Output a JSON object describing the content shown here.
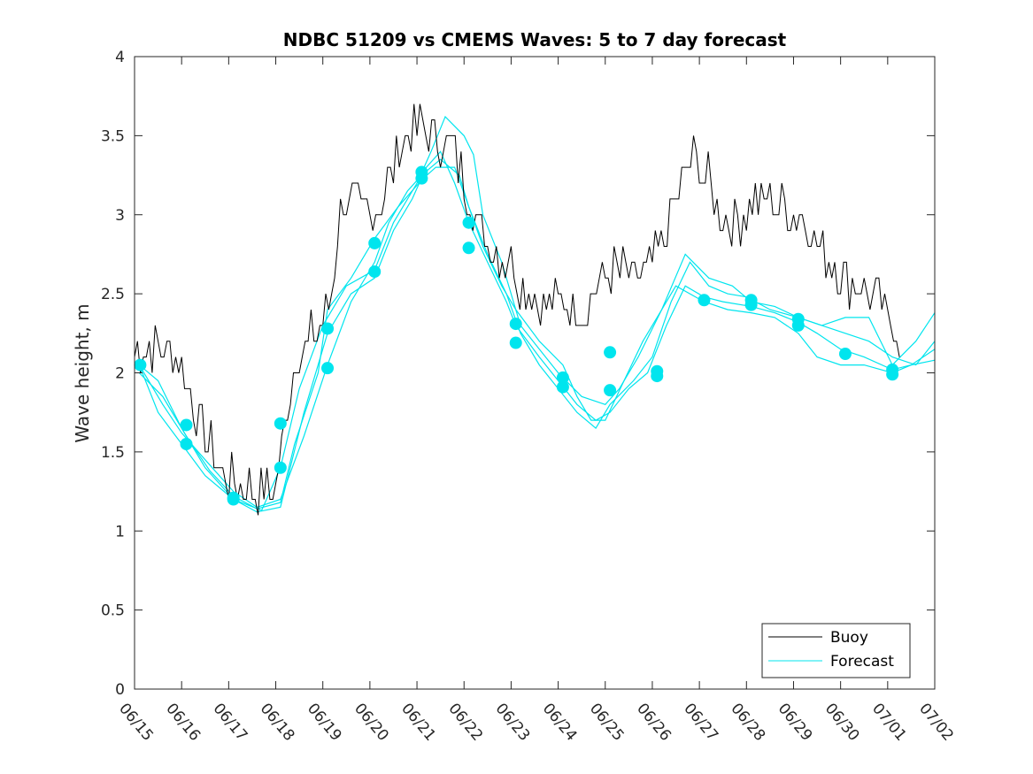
{
  "chart_data": {
    "type": "line",
    "title": "NDBC 51209 vs CMEMS Waves: 5 to 7 day forecast",
    "xlabel": "",
    "ylabel": "Wave height, m",
    "xlim": [
      0,
      17
    ],
    "ylim": [
      0,
      4
    ],
    "x_unit": "days since 06/15",
    "x_tick_labels": [
      "06/15",
      "06/16",
      "06/17",
      "06/18",
      "06/19",
      "06/20",
      "06/21",
      "06/22",
      "06/23",
      "06/24",
      "06/25",
      "06/26",
      "06/27",
      "06/28",
      "06/29",
      "06/30",
      "07/01",
      "07/02"
    ],
    "y_ticks": [
      0,
      0.5,
      1,
      1.5,
      2,
      2.5,
      3,
      3.5,
      4
    ],
    "y_tick_labels": [
      "0",
      "0.5",
      "1",
      "1.5",
      "2",
      "2.5",
      "3",
      "3.5",
      "4"
    ],
    "grid": false,
    "legend": {
      "position": "bottom-right",
      "entries": [
        "Buoy",
        "Forecast"
      ]
    },
    "colors": {
      "buoy": "#000000",
      "forecast": "#00e5ee"
    },
    "buoy_anchors": [
      [
        0.0,
        2.15
      ],
      [
        0.5,
        2.15
      ],
      [
        0.8,
        2.15
      ],
      [
        1.0,
        2.05
      ],
      [
        1.2,
        1.85
      ],
      [
        1.5,
        1.6
      ],
      [
        1.7,
        1.45
      ],
      [
        2.0,
        1.35
      ],
      [
        2.3,
        1.28
      ],
      [
        2.6,
        1.25
      ],
      [
        2.9,
        1.25
      ],
      [
        3.0,
        1.3
      ],
      [
        3.2,
        1.7
      ],
      [
        3.4,
        2.1
      ],
      [
        3.7,
        2.2
      ],
      [
        4.0,
        2.3
      ],
      [
        4.2,
        2.5
      ],
      [
        4.4,
        3.1
      ],
      [
        4.6,
        3.05
      ],
      [
        5.0,
        3.0
      ],
      [
        5.3,
        3.15
      ],
      [
        5.6,
        3.4
      ],
      [
        5.9,
        3.55
      ],
      [
        6.2,
        3.55
      ],
      [
        6.5,
        3.5
      ],
      [
        6.8,
        3.4
      ],
      [
        7.0,
        3.2
      ],
      [
        7.3,
        2.95
      ],
      [
        7.6,
        2.8
      ],
      [
        8.0,
        2.7
      ],
      [
        8.3,
        2.55
      ],
      [
        8.6,
        2.45
      ],
      [
        9.0,
        2.45
      ],
      [
        9.3,
        2.4
      ],
      [
        9.6,
        2.4
      ],
      [
        9.9,
        2.55
      ],
      [
        10.2,
        2.65
      ],
      [
        10.5,
        2.6
      ],
      [
        10.8,
        2.6
      ],
      [
        11.0,
        2.7
      ],
      [
        11.3,
        2.9
      ],
      [
        11.6,
        3.2
      ],
      [
        11.9,
        3.35
      ],
      [
        12.2,
        3.2
      ],
      [
        12.5,
        3.0
      ],
      [
        12.8,
        2.95
      ],
      [
        13.1,
        3.1
      ],
      [
        13.4,
        3.1
      ],
      [
        13.7,
        3.05
      ],
      [
        14.0,
        3.05
      ],
      [
        14.3,
        2.95
      ],
      [
        14.6,
        2.75
      ],
      [
        14.9,
        2.7
      ],
      [
        15.2,
        2.55
      ],
      [
        15.5,
        2.55
      ],
      [
        15.8,
        2.45
      ],
      [
        16.0,
        2.35
      ],
      [
        16.2,
        2.3
      ],
      [
        16.3,
        2.2
      ]
    ],
    "forecast_lines": [
      [
        [
          0.1,
          2.05
        ],
        [
          0.6,
          1.8
        ],
        [
          1.0,
          1.62
        ],
        [
          1.5,
          1.45
        ],
        [
          2.1,
          1.25
        ],
        [
          2.6,
          1.15
        ],
        [
          3.1,
          1.2
        ],
        [
          3.6,
          1.6
        ],
        [
          4.1,
          2.05
        ],
        [
          4.6,
          2.45
        ],
        [
          5.1,
          2.7
        ],
        [
          5.4,
          2.95
        ],
        [
          5.8,
          3.15
        ],
        [
          6.1,
          3.25
        ],
        [
          6.5,
          3.35
        ],
        [
          6.9,
          3.25
        ],
        [
          7.1,
          3.05
        ],
        [
          7.4,
          2.8
        ],
        [
          7.8,
          2.55
        ],
        [
          8.1,
          2.4
        ],
        [
          8.6,
          2.2
        ],
        [
          9.1,
          2.05
        ],
        [
          9.4,
          1.85
        ],
        [
          9.7,
          1.7
        ],
        [
          10.0,
          1.7
        ],
        [
          10.4,
          1.95
        ],
        [
          10.8,
          2.2
        ],
        [
          11.1,
          2.35
        ],
        [
          11.5,
          2.55
        ],
        [
          12.1,
          2.45
        ],
        [
          12.6,
          2.4
        ],
        [
          13.1,
          2.38
        ],
        [
          13.6,
          2.35
        ],
        [
          14.1,
          2.25
        ],
        [
          14.5,
          2.1
        ],
        [
          15.0,
          2.05
        ],
        [
          15.5,
          2.05
        ],
        [
          16.1,
          2.0
        ],
        [
          16.5,
          2.05
        ],
        [
          17.0,
          2.15
        ]
      ],
      [
        [
          0.1,
          2.05
        ],
        [
          0.5,
          1.95
        ],
        [
          1.0,
          1.65
        ],
        [
          1.5,
          1.4
        ],
        [
          2.1,
          1.2
        ],
        [
          2.6,
          1.12
        ],
        [
          3.1,
          1.15
        ],
        [
          3.6,
          1.75
        ],
        [
          4.1,
          2.25
        ],
        [
          4.6,
          2.5
        ],
        [
          5.1,
          2.6
        ],
        [
          5.5,
          2.9
        ],
        [
          5.9,
          3.1
        ],
        [
          6.2,
          3.3
        ],
        [
          6.5,
          3.4
        ],
        [
          6.8,
          3.2
        ],
        [
          7.1,
          2.95
        ],
        [
          7.5,
          2.7
        ],
        [
          7.9,
          2.45
        ],
        [
          8.1,
          2.3
        ],
        [
          8.6,
          2.1
        ],
        [
          9.0,
          1.95
        ],
        [
          9.4,
          1.8
        ],
        [
          9.8,
          1.7
        ],
        [
          10.1,
          1.75
        ],
        [
          10.5,
          1.9
        ],
        [
          10.9,
          2.0
        ],
        [
          11.3,
          2.3
        ],
        [
          11.7,
          2.55
        ],
        [
          12.1,
          2.48
        ],
        [
          12.5,
          2.45
        ],
        [
          13.1,
          2.42
        ],
        [
          13.6,
          2.38
        ],
        [
          14.1,
          2.32
        ],
        [
          14.5,
          2.25
        ],
        [
          15.0,
          2.15
        ],
        [
          15.5,
          2.1
        ],
        [
          16.1,
          2.02
        ],
        [
          16.5,
          2.05
        ],
        [
          17.0,
          2.08
        ]
      ],
      [
        [
          0.1,
          2.0
        ],
        [
          0.6,
          1.85
        ],
        [
          1.1,
          1.6
        ],
        [
          1.6,
          1.38
        ],
        [
          2.1,
          1.22
        ],
        [
          2.6,
          1.14
        ],
        [
          3.1,
          1.18
        ],
        [
          3.4,
          1.55
        ],
        [
          3.9,
          2.0
        ],
        [
          4.1,
          2.4
        ],
        [
          4.6,
          2.6
        ],
        [
          5.1,
          2.85
        ],
        [
          5.6,
          3.05
        ],
        [
          6.1,
          3.22
        ],
        [
          6.4,
          3.3
        ],
        [
          6.8,
          3.3
        ],
        [
          7.1,
          3.05
        ],
        [
          7.5,
          2.75
        ],
        [
          7.9,
          2.5
        ],
        [
          8.2,
          2.25
        ],
        [
          8.6,
          2.05
        ],
        [
          9.0,
          1.9
        ],
        [
          9.4,
          1.75
        ],
        [
          9.8,
          1.65
        ],
        [
          10.1,
          1.8
        ],
        [
          10.6,
          1.95
        ],
        [
          11.0,
          2.1
        ],
        [
          11.4,
          2.45
        ],
        [
          11.8,
          2.7
        ],
        [
          12.2,
          2.55
        ],
        [
          12.6,
          2.5
        ],
        [
          13.0,
          2.48
        ],
        [
          13.5,
          2.4
        ],
        [
          14.1,
          2.35
        ],
        [
          14.6,
          2.3
        ],
        [
          15.1,
          2.35
        ],
        [
          15.6,
          2.35
        ],
        [
          16.1,
          2.05
        ],
        [
          16.6,
          2.2
        ],
        [
          17.0,
          2.38
        ]
      ],
      [
        [
          0.1,
          2.05
        ],
        [
          0.5,
          1.75
        ],
        [
          1.0,
          1.55
        ],
        [
          1.5,
          1.35
        ],
        [
          2.1,
          1.2
        ],
        [
          2.7,
          1.13
        ],
        [
          3.1,
          1.4
        ],
        [
          3.5,
          1.9
        ],
        [
          4.0,
          2.3
        ],
        [
          4.5,
          2.55
        ],
        [
          5.1,
          2.65
        ],
        [
          5.5,
          2.95
        ],
        [
          6.0,
          3.2
        ],
        [
          6.3,
          3.4
        ],
        [
          6.6,
          3.62
        ],
        [
          7.0,
          3.5
        ],
        [
          7.2,
          3.38
        ],
        [
          7.4,
          3.0
        ],
        [
          7.8,
          2.7
        ],
        [
          8.2,
          2.3
        ],
        [
          8.6,
          2.15
        ],
        [
          9.0,
          2.0
        ],
        [
          9.5,
          1.85
        ],
        [
          10.0,
          1.8
        ],
        [
          10.3,
          1.9
        ],
        [
          10.7,
          2.1
        ],
        [
          11.2,
          2.4
        ],
        [
          11.7,
          2.75
        ],
        [
          12.2,
          2.6
        ],
        [
          12.7,
          2.55
        ],
        [
          13.1,
          2.45
        ],
        [
          13.6,
          2.42
        ],
        [
          14.1,
          2.35
        ],
        [
          14.6,
          2.3
        ],
        [
          15.1,
          2.25
        ],
        [
          15.6,
          2.2
        ],
        [
          16.1,
          2.1
        ],
        [
          16.6,
          2.05
        ],
        [
          17.0,
          2.2
        ]
      ]
    ],
    "forecast_markers": [
      [
        0.12,
        2.05
      ],
      [
        1.1,
        1.67
      ],
      [
        1.1,
        1.55
      ],
      [
        2.1,
        1.21
      ],
      [
        2.1,
        1.2
      ],
      [
        3.1,
        1.68
      ],
      [
        3.1,
        1.4
      ],
      [
        4.1,
        2.28
      ],
      [
        4.1,
        2.03
      ],
      [
        5.1,
        2.82
      ],
      [
        5.1,
        2.64
      ],
      [
        6.1,
        3.27
      ],
      [
        6.1,
        3.23
      ],
      [
        7.1,
        2.95
      ],
      [
        7.1,
        2.79
      ],
      [
        8.1,
        2.31
      ],
      [
        8.1,
        2.19
      ],
      [
        9.1,
        1.97
      ],
      [
        9.1,
        1.91
      ],
      [
        10.1,
        2.13
      ],
      [
        10.1,
        1.89
      ],
      [
        11.1,
        2.01
      ],
      [
        11.1,
        1.98
      ],
      [
        12.1,
        2.46
      ],
      [
        13.1,
        2.46
      ],
      [
        13.1,
        2.43
      ],
      [
        14.1,
        2.34
      ],
      [
        14.1,
        2.3
      ],
      [
        15.1,
        2.12
      ],
      [
        16.1,
        2.02
      ],
      [
        16.1,
        1.99
      ]
    ]
  }
}
